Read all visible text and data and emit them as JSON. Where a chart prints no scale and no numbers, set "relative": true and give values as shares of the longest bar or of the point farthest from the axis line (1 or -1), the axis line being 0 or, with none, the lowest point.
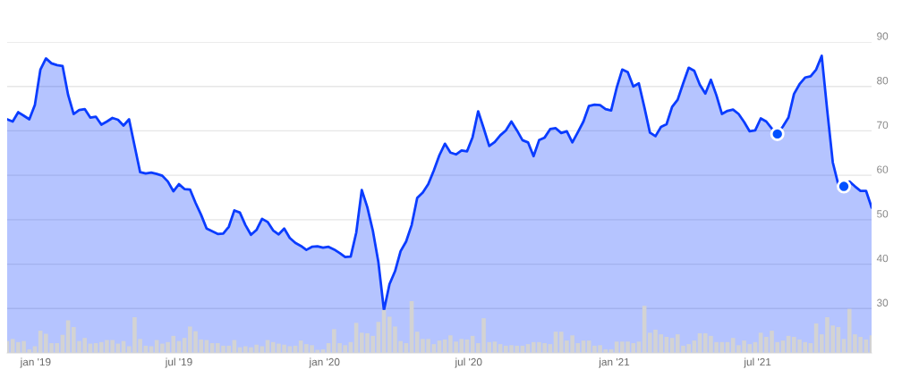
{
  "chart_data": [
    {
      "type": "area",
      "x": [
        "2018-11-26",
        "2018-12-03",
        "2018-12-10",
        "2018-12-17",
        "2018-12-24",
        "2018-12-31",
        "2019-01-07",
        "2019-01-14",
        "2019-01-21",
        "2019-01-28",
        "2019-02-04",
        "2019-02-11",
        "2019-02-18",
        "2019-02-25",
        "2019-03-04",
        "2019-03-11",
        "2019-03-18",
        "2019-03-25",
        "2019-04-01",
        "2019-04-08",
        "2019-04-15",
        "2019-04-22",
        "2019-04-29",
        "2019-05-06",
        "2019-05-13",
        "2019-05-20",
        "2019-05-27",
        "2019-06-03",
        "2019-06-10",
        "2019-06-17",
        "2019-06-24",
        "2019-07-01",
        "2019-07-08",
        "2019-07-15",
        "2019-07-22",
        "2019-07-29",
        "2019-08-05",
        "2019-08-12",
        "2019-08-19",
        "2019-08-26",
        "2019-09-02",
        "2019-09-09",
        "2019-09-16",
        "2019-09-23",
        "2019-09-30",
        "2019-10-07",
        "2019-10-14",
        "2019-10-21",
        "2019-10-28",
        "2019-11-04",
        "2019-11-11",
        "2019-11-18",
        "2019-11-25",
        "2019-12-02",
        "2019-12-09",
        "2019-12-16",
        "2019-12-23",
        "2019-12-30",
        "2020-01-06",
        "2020-01-13",
        "2020-01-20",
        "2020-01-27",
        "2020-02-03",
        "2020-02-10",
        "2020-02-17",
        "2020-02-24",
        "2020-03-02",
        "2020-03-09",
        "2020-03-16",
        "2020-03-23",
        "2020-03-30",
        "2020-04-06",
        "2020-04-13",
        "2020-04-20",
        "2020-04-27",
        "2020-05-04",
        "2020-05-11",
        "2020-05-18",
        "2020-05-25",
        "2020-06-01",
        "2020-06-08",
        "2020-06-15",
        "2020-06-22",
        "2020-06-29",
        "2020-07-06",
        "2020-07-13",
        "2020-07-20",
        "2020-07-27",
        "2020-08-03",
        "2020-08-10",
        "2020-08-17",
        "2020-08-24",
        "2020-08-31",
        "2020-09-07",
        "2020-09-14",
        "2020-09-21",
        "2020-09-28",
        "2020-10-05",
        "2020-10-12",
        "2020-10-19",
        "2020-10-26",
        "2020-11-02",
        "2020-11-09",
        "2020-11-16",
        "2020-11-23",
        "2020-11-30",
        "2020-12-07",
        "2020-12-14",
        "2020-12-21",
        "2020-12-28",
        "2021-01-04",
        "2021-01-11",
        "2021-01-18",
        "2021-01-25",
        "2021-02-01",
        "2021-02-08",
        "2021-02-15",
        "2021-02-22",
        "2021-03-01",
        "2021-03-08",
        "2021-03-15",
        "2021-03-22",
        "2021-03-29",
        "2021-04-05",
        "2021-04-12",
        "2021-04-19",
        "2021-04-26",
        "2021-05-03",
        "2021-05-10",
        "2021-05-17",
        "2021-05-24",
        "2021-05-31",
        "2021-06-07",
        "2021-06-14",
        "2021-06-21",
        "2021-06-28",
        "2021-07-05",
        "2021-07-12",
        "2021-07-19",
        "2021-07-26",
        "2021-08-02",
        "2021-08-09",
        "2021-08-16",
        "2021-08-23",
        "2021-08-30",
        "2021-09-06",
        "2021-09-13",
        "2021-09-20",
        "2021-09-27",
        "2021-10-04",
        "2021-10-11",
        "2021-10-18",
        "2021-10-25",
        "2021-11-01",
        "2021-11-08",
        "2021-11-15",
        "2021-11-22"
      ],
      "series": [
        {
          "color": "#0a3cff",
          "values": [
            72.6,
            72.1,
            74.2,
            73.4,
            72.6,
            75.8,
            83.8,
            86.3,
            85.2,
            84.8,
            84.6,
            78.1,
            73.8,
            74.7,
            74.9,
            73.0,
            73.2,
            71.4,
            72.1,
            72.9,
            72.5,
            71.2,
            72.6,
            66.6,
            60.7,
            60.4,
            60.6,
            60.3,
            59.9,
            58.6,
            56.4,
            58.0,
            56.9,
            56.8,
            53.8,
            51.1,
            48.0,
            47.4,
            46.8,
            46.9,
            48.4,
            52.1,
            51.6,
            48.8,
            46.6,
            47.7,
            50.2,
            49.5,
            47.6,
            46.7,
            48.0,
            45.9,
            44.8,
            44.1,
            43.2,
            43.9,
            44.0,
            43.7,
            43.9,
            43.3,
            42.5,
            41.6,
            41.7,
            47.1,
            56.7,
            52.8,
            47.5,
            40.4,
            29.6,
            35.5,
            38.4,
            42.9,
            45.1,
            48.8,
            54.9,
            56.1,
            58.0,
            61.1,
            64.5,
            67.1,
            65.1,
            64.7,
            65.6,
            65.4,
            68.6,
            74.4,
            70.6,
            66.6,
            67.5,
            69.0,
            70.1,
            72.1,
            70.1,
            67.9,
            67.4,
            64.3,
            67.9,
            68.5,
            70.4,
            70.6,
            69.5,
            69.9,
            67.4,
            69.7,
            72.1,
            75.6,
            75.9,
            75.8,
            74.9,
            74.6,
            79.7,
            83.8,
            83.2,
            80.0,
            80.7,
            75.3,
            69.6,
            68.8,
            70.9,
            71.5,
            75.4,
            77.0,
            80.7,
            84.2,
            83.5,
            80.4,
            78.4,
            81.5,
            78.0,
            73.8,
            74.5,
            74.8,
            73.8,
            72.0,
            69.9,
            70.1,
            72.8,
            72.1,
            70.5,
            69.3,
            71.0,
            73.0,
            78.3,
            80.5,
            82.0,
            82.3,
            83.8,
            86.9,
            74.6,
            62.9,
            57.9,
            57.5,
            58.6,
            57.5,
            56.5,
            56.5,
            52.8
          ]
        },
        {
          "type": "scatter",
          "color": "#0050ff",
          "marker": "circle",
          "x": [
            "2021-07-26",
            "2021-10-18"
          ],
          "values": [
            69.3,
            57.5
          ]
        }
      ],
      "xlim": [
        "2018-11-26",
        "2021-11-22"
      ],
      "xticks": [
        {
          "value": "2019-01-01",
          "label": "jan '19"
        },
        {
          "value": "2019-07-01",
          "label": "jul '19"
        },
        {
          "value": "2020-01-01",
          "label": "jan '20"
        },
        {
          "value": "2020-07-01",
          "label": "jul '20"
        },
        {
          "value": "2021-01-01",
          "label": "jan '21"
        },
        {
          "value": "2021-07-01",
          "label": "jul '21"
        }
      ],
      "ylim": [
        20,
        90
      ],
      "yticks": [
        30,
        40,
        50,
        60,
        70,
        80,
        90
      ],
      "grid": "y"
    },
    {
      "type": "bar",
      "relative": true,
      "tick_labels": false,
      "color": "#d3d3d3",
      "x": [
        "2018-11-26",
        "2018-12-03",
        "2018-12-10",
        "2018-12-17",
        "2018-12-24",
        "2018-12-31",
        "2019-01-07",
        "2019-01-14",
        "2019-01-21",
        "2019-01-28",
        "2019-02-04",
        "2019-02-11",
        "2019-02-18",
        "2019-02-25",
        "2019-03-04",
        "2019-03-11",
        "2019-03-18",
        "2019-03-25",
        "2019-04-01",
        "2019-04-08",
        "2019-04-15",
        "2019-04-22",
        "2019-04-29",
        "2019-05-06",
        "2019-05-13",
        "2019-05-20",
        "2019-05-27",
        "2019-06-03",
        "2019-06-10",
        "2019-06-17",
        "2019-06-24",
        "2019-07-01",
        "2019-07-08",
        "2019-07-15",
        "2019-07-22",
        "2019-07-29",
        "2019-08-05",
        "2019-08-12",
        "2019-08-19",
        "2019-08-26",
        "2019-09-02",
        "2019-09-09",
        "2019-09-16",
        "2019-09-23",
        "2019-09-30",
        "2019-10-07",
        "2019-10-14",
        "2019-10-21",
        "2019-10-28",
        "2019-11-04",
        "2019-11-11",
        "2019-11-18",
        "2019-11-25",
        "2019-12-02",
        "2019-12-09",
        "2019-12-16",
        "2019-12-23",
        "2019-12-30",
        "2020-01-06",
        "2020-01-13",
        "2020-01-20",
        "2020-01-27",
        "2020-02-03",
        "2020-02-10",
        "2020-02-17",
        "2020-02-24",
        "2020-03-02",
        "2020-03-09",
        "2020-03-16",
        "2020-03-23",
        "2020-03-30",
        "2020-04-06",
        "2020-04-13",
        "2020-04-20",
        "2020-04-27",
        "2020-05-04",
        "2020-05-11",
        "2020-05-18",
        "2020-05-25",
        "2020-06-01",
        "2020-06-08",
        "2020-06-15",
        "2020-06-22",
        "2020-06-29",
        "2020-07-06",
        "2020-07-13",
        "2020-07-20",
        "2020-07-27",
        "2020-08-03",
        "2020-08-10",
        "2020-08-17",
        "2020-08-24",
        "2020-08-31",
        "2020-09-07",
        "2020-09-14",
        "2020-09-21",
        "2020-09-28",
        "2020-10-05",
        "2020-10-12",
        "2020-10-19",
        "2020-10-26",
        "2020-11-02",
        "2020-11-09",
        "2020-11-16",
        "2020-11-23",
        "2020-11-30",
        "2020-12-07",
        "2020-12-14",
        "2020-12-21",
        "2020-12-28",
        "2021-01-04",
        "2021-01-11",
        "2021-01-18",
        "2021-01-25",
        "2021-02-01",
        "2021-02-08",
        "2021-02-15",
        "2021-02-22",
        "2021-03-01",
        "2021-03-08",
        "2021-03-15",
        "2021-03-22",
        "2021-03-29",
        "2021-04-05",
        "2021-04-12",
        "2021-04-19",
        "2021-04-26",
        "2021-05-03",
        "2021-05-10",
        "2021-05-17",
        "2021-05-24",
        "2021-05-31",
        "2021-06-07",
        "2021-06-14",
        "2021-06-21",
        "2021-06-28",
        "2021-07-05",
        "2021-07-12",
        "2021-07-19",
        "2021-07-26",
        "2021-08-02",
        "2021-08-09",
        "2021-08-16",
        "2021-08-23",
        "2021-08-30",
        "2021-09-06",
        "2021-09-13",
        "2021-09-20",
        "2021-09-27",
        "2021-10-04",
        "2021-10-11",
        "2021-10-18",
        "2021-10-25",
        "2021-11-01",
        "2021-11-08",
        "2021-11-15",
        "2021-11-22"
      ],
      "values": [
        0.23,
        0.27,
        0.21,
        0.23,
        0.07,
        0.13,
        0.43,
        0.37,
        0.19,
        0.19,
        0.35,
        0.63,
        0.5,
        0.23,
        0.29,
        0.18,
        0.19,
        0.21,
        0.25,
        0.25,
        0.18,
        0.23,
        0.13,
        0.69,
        0.27,
        0.14,
        0.13,
        0.25,
        0.18,
        0.21,
        0.33,
        0.23,
        0.29,
        0.51,
        0.42,
        0.26,
        0.25,
        0.19,
        0.19,
        0.14,
        0.14,
        0.25,
        0.11,
        0.13,
        0.11,
        0.16,
        0.13,
        0.25,
        0.21,
        0.18,
        0.16,
        0.13,
        0.14,
        0.24,
        0.17,
        0.15,
        0.06,
        0.07,
        0.19,
        0.46,
        0.19,
        0.15,
        0.21,
        0.58,
        0.39,
        0.38,
        0.33,
        0.6,
        0.83,
        0.7,
        0.51,
        0.23,
        0.19,
        1,
        0.41,
        0.27,
        0.27,
        0.17,
        0.24,
        0.26,
        0.34,
        0.22,
        0.27,
        0.26,
        0.33,
        0.19,
        0.67,
        0.21,
        0.22,
        0.17,
        0.14,
        0.15,
        0.14,
        0.14,
        0.17,
        0.21,
        0.21,
        0.19,
        0.17,
        0.41,
        0.41,
        0.24,
        0.34,
        0.19,
        0.24,
        0.24,
        0.14,
        0.15,
        0.07,
        0.07,
        0.22,
        0.22,
        0.22,
        0.19,
        0.22,
        0.91,
        0.39,
        0.45,
        0.36,
        0.31,
        0.29,
        0.36,
        0.14,
        0.17,
        0.24,
        0.38,
        0.38,
        0.33,
        0.21,
        0.21,
        0.21,
        0.29,
        0.15,
        0.24,
        0.17,
        0.21,
        0.39,
        0.31,
        0.43,
        0.21,
        0.24,
        0.33,
        0.31,
        0.26,
        0.21,
        0.19,
        0.57,
        0.36,
        0.69,
        0.53,
        0.5,
        0.27,
        0.85,
        0.36,
        0.31,
        0.26,
        0.34
      ],
      "xlim": [
        "2018-11-26",
        "2021-11-22"
      ]
    }
  ]
}
